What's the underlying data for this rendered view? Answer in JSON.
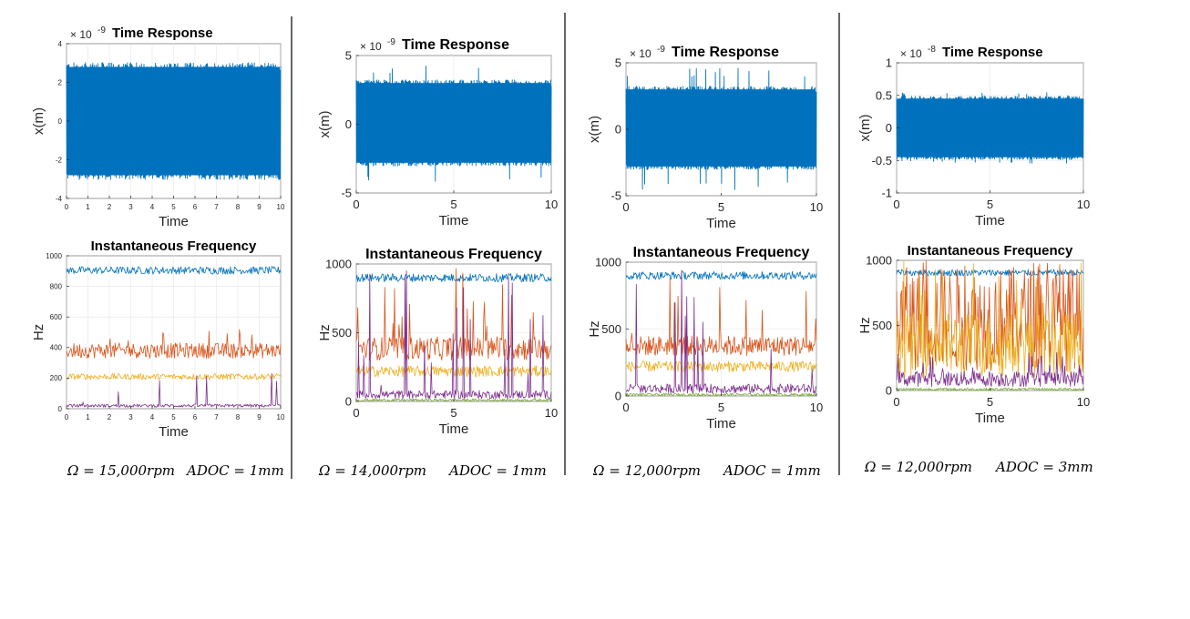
{
  "figure": {
    "captions": [
      {
        "omega": "Ω = 15,000𝑟𝑝𝑚",
        "adoc": "𝐴𝐷𝑂𝐶 = 1𝑚𝑚"
      },
      {
        "omega": "Ω = 14,000𝑟𝑝𝑚",
        "adoc": "𝐴𝐷𝑂𝐶 = 1𝑚𝑚"
      },
      {
        "omega": "Ω = 12,000𝑟𝑝𝑚",
        "adoc": "𝐴𝐷𝑂𝐶 = 1𝑚𝑚"
      },
      {
        "omega": "Ω = 12,000𝑟𝑝𝑚",
        "adoc": "𝐴𝐷𝑂𝐶 = 3𝑚𝑚"
      }
    ]
  },
  "chart_data": [
    {
      "type": "area",
      "title": "Time Response",
      "xlabel": "Time",
      "ylabel": "x(m)",
      "exponent_label": "× 10",
      "exponent": "-9",
      "xlim": [
        0,
        10
      ],
      "ylim": [
        -4,
        4
      ],
      "xticks": [
        "0",
        "1",
        "2",
        "3",
        "4",
        "5",
        "6",
        "7",
        "8",
        "9",
        "10"
      ],
      "yticks": [
        "4",
        "2",
        "0",
        "-2",
        "-4"
      ],
      "series": [
        {
          "color": "#0072BD",
          "band": [
            -2.8,
            2.8
          ],
          "peak": 3.0
        }
      ]
    },
    {
      "type": "line",
      "title": "Instantaneous Frequency",
      "xlabel": "Time",
      "ylabel": "Hz",
      "xlim": [
        0,
        10
      ],
      "ylim": [
        0,
        1000
      ],
      "xticks": [
        "0",
        "1",
        "2",
        "3",
        "4",
        "5",
        "6",
        "7",
        "8",
        "9",
        "10"
      ],
      "yticks": [
        "1000",
        "800",
        "600",
        "400",
        "200",
        "0"
      ],
      "series": [
        {
          "color": "#0072BD",
          "band": [
            880,
            930
          ]
        },
        {
          "color": "#D95319",
          "band": [
            330,
            430
          ],
          "peak": 520
        },
        {
          "color": "#EDB120",
          "band": [
            190,
            230
          ]
        },
        {
          "color": "#7E2F8E",
          "band": [
            10,
            30
          ],
          "peak": 240
        }
      ]
    },
    {
      "type": "area",
      "title": "Time Response",
      "xlabel": "Time",
      "ylabel": "x(m)",
      "exponent_label": "× 10",
      "exponent": "-9",
      "xlim": [
        0,
        10
      ],
      "ylim": [
        -5,
        5
      ],
      "xticks": [
        "0",
        "5",
        "10"
      ],
      "yticks": [
        "5",
        "0",
        "-5"
      ],
      "series": [
        {
          "color": "#0072BD",
          "band": [
            -2.8,
            3.0
          ],
          "peak": 4.3
        }
      ]
    },
    {
      "type": "line",
      "title": "Instantaneous Frequency",
      "xlabel": "Time",
      "ylabel": "Hz",
      "xlim": [
        0,
        10
      ],
      "ylim": [
        0,
        1000
      ],
      "xticks": [
        "0",
        "5",
        "10"
      ],
      "yticks": [
        "1000",
        "500",
        "0"
      ],
      "series": [
        {
          "color": "#0072BD",
          "band": [
            870,
            930
          ]
        },
        {
          "color": "#D95319",
          "band": [
            300,
            470
          ],
          "peak": 980
        },
        {
          "color": "#EDB120",
          "band": [
            180,
            260
          ]
        },
        {
          "color": "#7E2F8E",
          "band": [
            20,
            80
          ],
          "peak": 950
        },
        {
          "color": "#77AC30",
          "band": [
            0,
            20
          ]
        }
      ]
    },
    {
      "type": "area",
      "title": "Time Response",
      "xlabel": "Time",
      "ylabel": "x(m)",
      "exponent_label": "× 10",
      "exponent": "-9",
      "xlim": [
        0,
        10
      ],
      "ylim": [
        -5,
        5
      ],
      "xticks": [
        "0",
        "5",
        "10"
      ],
      "yticks": [
        "5",
        "0",
        "-5"
      ],
      "series": [
        {
          "color": "#0072BD",
          "band": [
            -2.8,
            3.0
          ],
          "peak": 4.6
        }
      ]
    },
    {
      "type": "line",
      "title": "Instantaneous Frequency",
      "xlabel": "Time",
      "ylabel": "Hz",
      "xlim": [
        0,
        10
      ],
      "ylim": [
        0,
        1000
      ],
      "xticks": [
        "0",
        "5",
        "10"
      ],
      "yticks": [
        "1000",
        "500",
        "0"
      ],
      "series": [
        {
          "color": "#0072BD",
          "band": [
            870,
            930
          ]
        },
        {
          "color": "#D95319",
          "band": [
            300,
            450
          ],
          "peak": 980
        },
        {
          "color": "#EDB120",
          "band": [
            180,
            260
          ]
        },
        {
          "color": "#7E2F8E",
          "band": [
            20,
            90
          ],
          "peak": 950
        },
        {
          "color": "#77AC30",
          "band": [
            0,
            20
          ]
        }
      ]
    },
    {
      "type": "area",
      "title": "Time Response",
      "xlabel": "Time",
      "ylabel": "x(m)",
      "exponent_label": "× 10",
      "exponent": "-8",
      "xlim": [
        0,
        10
      ],
      "ylim": [
        -1,
        1
      ],
      "xticks": [
        "0",
        "5",
        "10"
      ],
      "yticks": [
        "1",
        "0.5",
        "0",
        "-0.5",
        "-1"
      ],
      "series": [
        {
          "color": "#0072BD",
          "band": [
            -0.45,
            0.45
          ],
          "peak": 0.55
        }
      ]
    },
    {
      "type": "line",
      "title": "Instantaneous Frequency",
      "xlabel": "Time",
      "ylabel": "Hz",
      "xlim": [
        0,
        10
      ],
      "ylim": [
        0,
        1000
      ],
      "xticks": [
        "0",
        "5",
        "10"
      ],
      "yticks": [
        "1000",
        "500",
        "0"
      ],
      "series": [
        {
          "color": "#0072BD",
          "band": [
            880,
            930
          ]
        },
        {
          "color": "#D95319",
          "band": [
            150,
            950
          ],
          "peak": 1000
        },
        {
          "color": "#EDB120",
          "band": [
            100,
            600
          ],
          "peak": 1000
        },
        {
          "color": "#7E2F8E",
          "band": [
            30,
            150
          ],
          "peak": 300
        },
        {
          "color": "#77AC30",
          "band": [
            0,
            20
          ]
        }
      ]
    }
  ]
}
